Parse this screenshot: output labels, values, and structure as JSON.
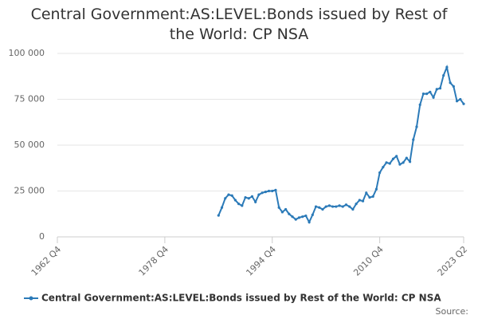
{
  "chart_data": {
    "type": "line",
    "title": "Central Government:AS:LEVEL:Bonds issued by Rest of the World: CP NSA",
    "x": [
      "1986 Q4",
      "1987 Q2",
      "1987 Q4",
      "1988 Q2",
      "1988 Q4",
      "1989 Q2",
      "1989 Q4",
      "1990 Q2",
      "1990 Q4",
      "1991 Q2",
      "1991 Q4",
      "1992 Q2",
      "1992 Q4",
      "1993 Q2",
      "1993 Q4",
      "1994 Q2",
      "1994 Q4",
      "1995 Q2",
      "1995 Q4",
      "1996 Q2",
      "1996 Q4",
      "1997 Q2",
      "1997 Q4",
      "1998 Q2",
      "1998 Q4",
      "1999 Q2",
      "1999 Q4",
      "2000 Q2",
      "2000 Q4",
      "2001 Q2",
      "2001 Q4",
      "2002 Q2",
      "2002 Q4",
      "2003 Q2",
      "2003 Q4",
      "2004 Q2",
      "2004 Q4",
      "2005 Q2",
      "2005 Q4",
      "2006 Q2",
      "2006 Q4",
      "2007 Q2",
      "2007 Q4",
      "2008 Q2",
      "2008 Q4",
      "2009 Q2",
      "2009 Q4",
      "2010 Q2",
      "2010 Q4",
      "2011 Q2",
      "2011 Q4",
      "2012 Q2",
      "2012 Q4",
      "2013 Q2",
      "2013 Q4",
      "2014 Q2",
      "2014 Q4",
      "2015 Q2",
      "2015 Q4",
      "2016 Q2",
      "2016 Q4",
      "2017 Q2",
      "2017 Q4",
      "2018 Q2",
      "2018 Q4",
      "2019 Q2",
      "2019 Q4",
      "2020 Q2",
      "2020 Q4",
      "2021 Q2",
      "2021 Q4",
      "2022 Q2",
      "2022 Q4",
      "2023 Q2"
    ],
    "series": [
      {
        "name": "Central Government:AS:LEVEL:Bonds issued by Rest of the World: CP NSA",
        "color": "#2b7ab8",
        "values": [
          11700,
          16000,
          21000,
          23000,
          22500,
          20000,
          18000,
          17000,
          21500,
          21000,
          22000,
          19000,
          23000,
          24000,
          24500,
          25000,
          25000,
          25500,
          16000,
          13500,
          15000,
          12500,
          11000,
          9500,
          10500,
          11000,
          11500,
          8000,
          12000,
          16500,
          16000,
          15000,
          16500,
          17000,
          16500,
          16500,
          17000,
          16500,
          17500,
          16500,
          15000,
          18000,
          20000,
          19500,
          24000,
          21500,
          22000,
          26000,
          35000,
          38000,
          40500,
          40000,
          42500,
          44000,
          39500,
          40500,
          43000,
          41000,
          53000,
          60000,
          72000,
          78000,
          78000,
          79000,
          76000,
          80500,
          81000,
          88000,
          92500,
          84000,
          82000,
          74000,
          75000,
          72500
        ]
      }
    ],
    "xlim": [
      "1962 Q4",
      "2023 Q2"
    ],
    "xticks": [
      "1962 Q4",
      "1978 Q4",
      "1994 Q4",
      "2010 Q4",
      "2023 Q2"
    ],
    "ylim": [
      0,
      100000
    ],
    "yticks": [
      0,
      {
        "value": 25000,
        "label": "25 000"
      },
      {
        "value": 50000,
        "label": "50 000"
      },
      {
        "value": 75000,
        "label": "75 000"
      },
      {
        "value": 100000,
        "label": "100 000"
      }
    ],
    "grid": true,
    "legend": "bottom",
    "source": "Source:"
  }
}
